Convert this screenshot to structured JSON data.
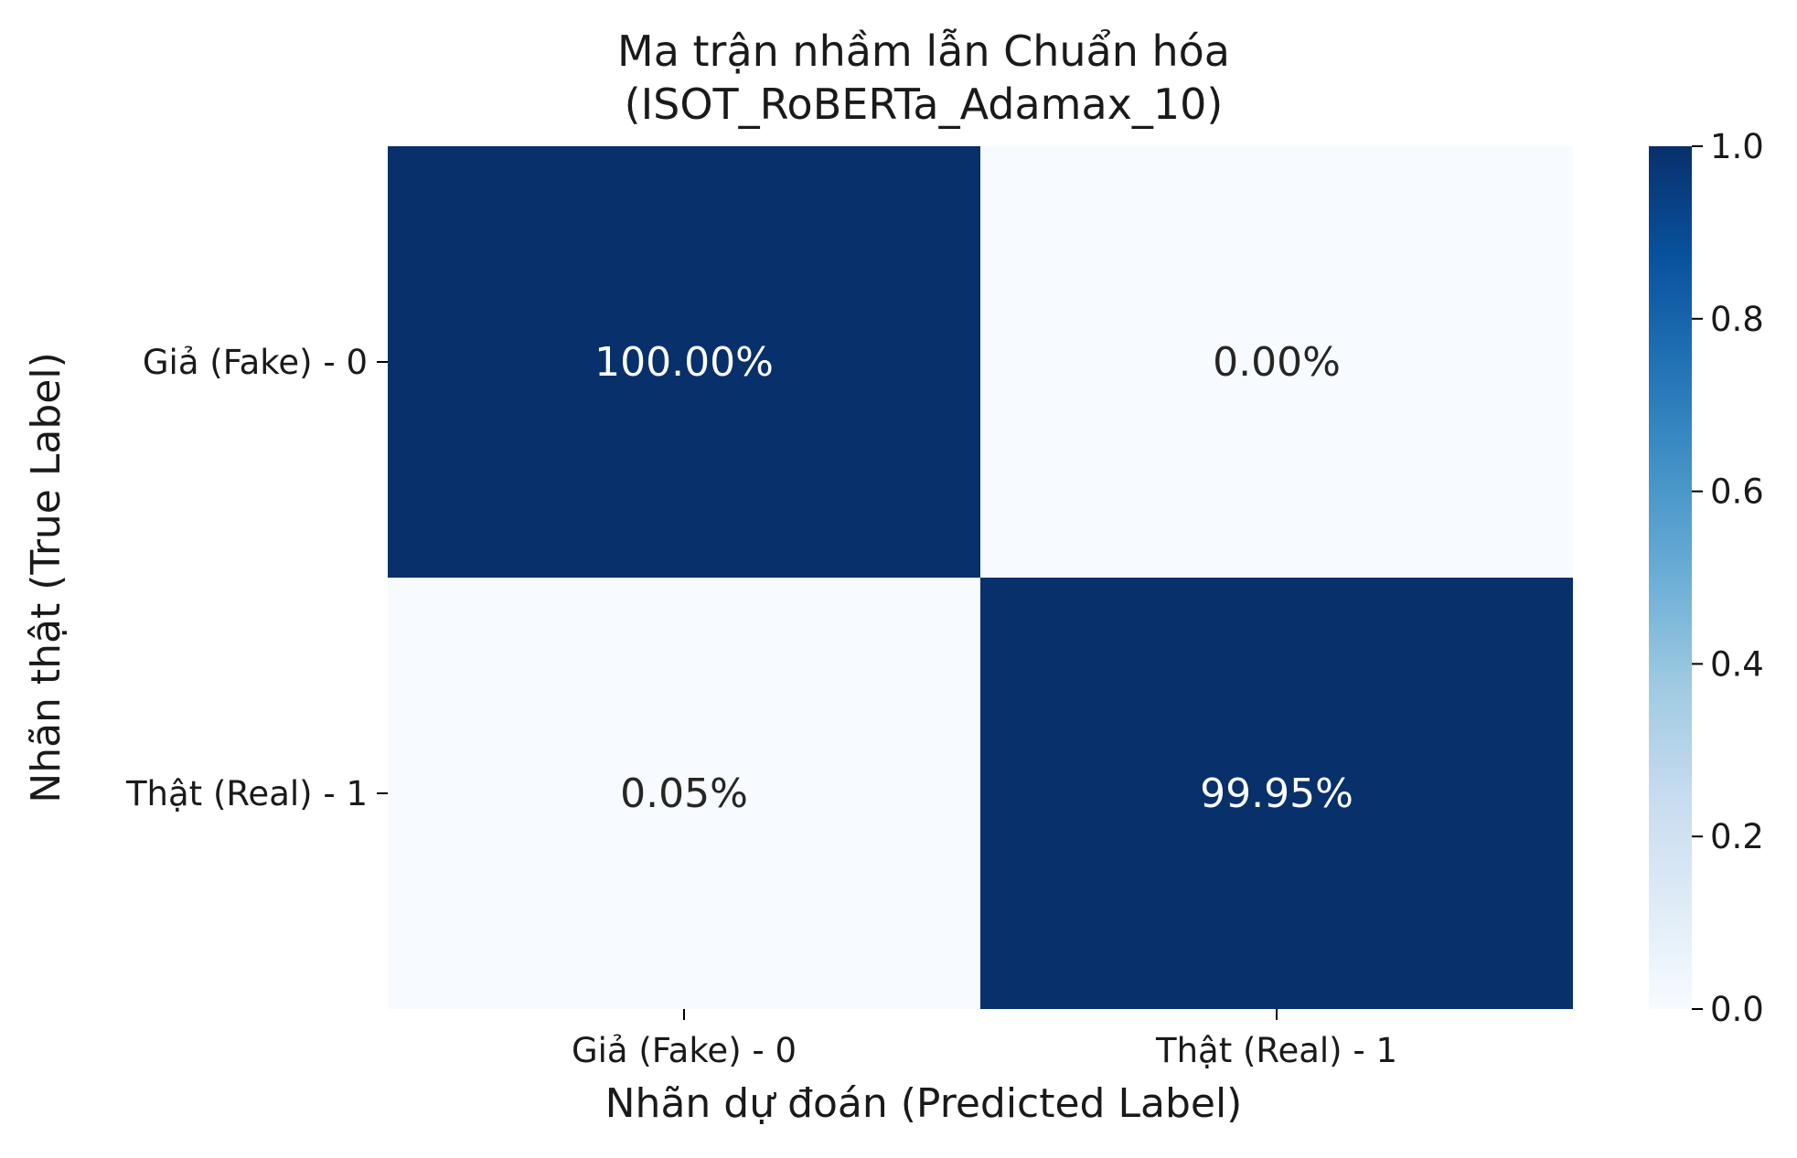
{
  "chart_data": {
    "type": "heatmap",
    "title_lines": [
      "Ma trận nhầm lẫn Chuẩn hóa",
      "(ISOT_RoBERTa_Adamax_10)"
    ],
    "xlabel": "Nhãn dự đoán (Predicted Label)",
    "ylabel": "Nhãn thật (True Label)",
    "x_categories": [
      "Giả (Fake) - 0",
      "Thật (Real) - 1"
    ],
    "y_categories": [
      "Giả (Fake) - 0",
      "Thật (Real) - 1"
    ],
    "values": [
      [
        1.0,
        0.0
      ],
      [
        0.0005,
        0.9995
      ]
    ],
    "cell_labels": [
      [
        "100.00%",
        "0.00%"
      ],
      [
        "0.05%",
        "99.95%"
      ]
    ],
    "colormap": "Blues",
    "colormap_stops": [
      "#f7fbff",
      "#deebf7",
      "#c6dbef",
      "#9ecae1",
      "#6baed6",
      "#4292c6",
      "#2171b5",
      "#08519c",
      "#08306b"
    ],
    "vmin": 0.0,
    "vmax": 1.0,
    "colorbar_ticks": [
      "0.0",
      "0.2",
      "0.4",
      "0.6",
      "0.8",
      "1.0"
    ]
  }
}
